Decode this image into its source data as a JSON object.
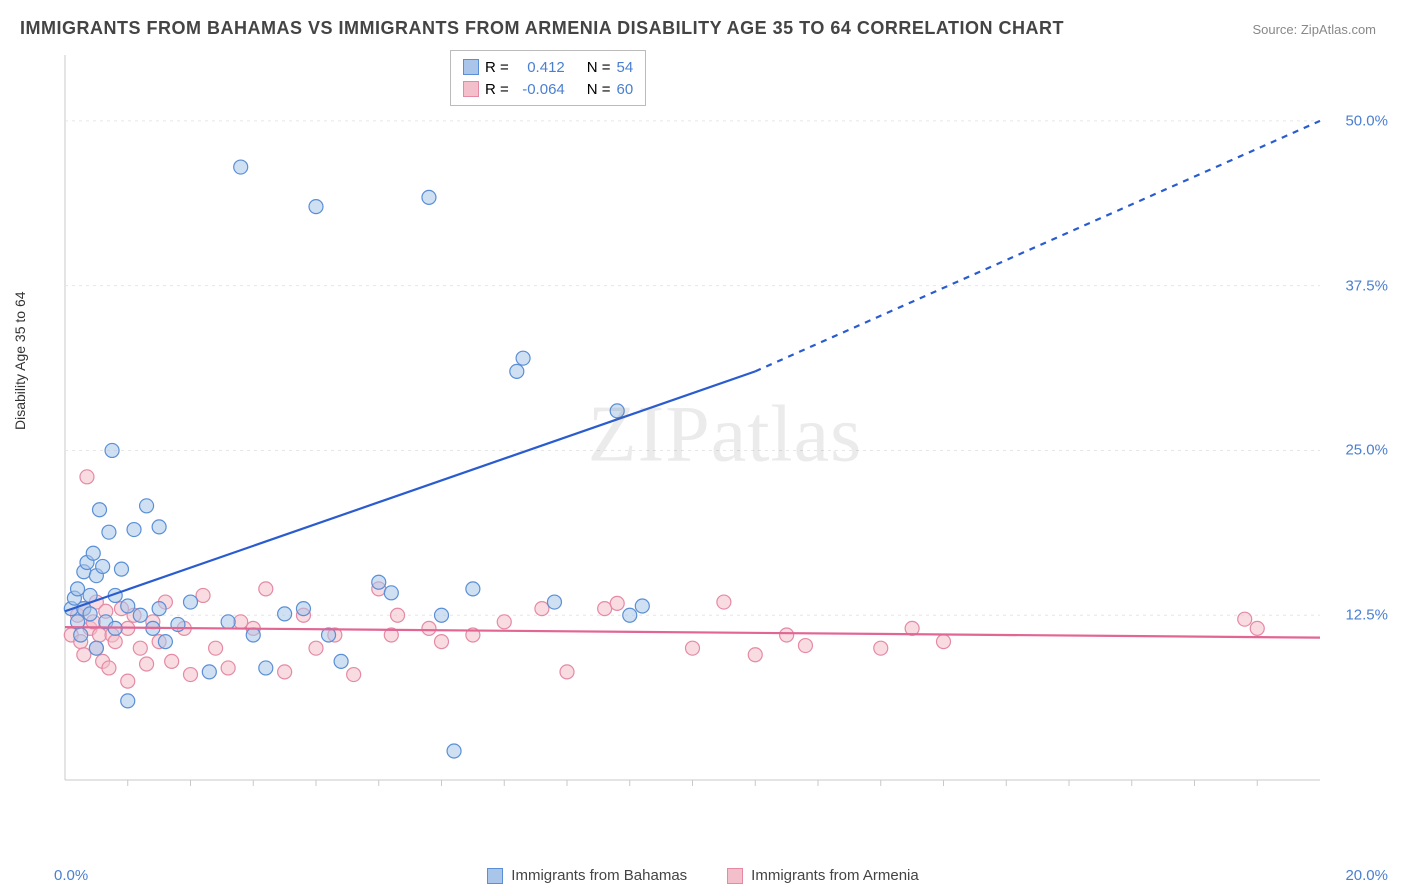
{
  "title": "IMMIGRANTS FROM BAHAMAS VS IMMIGRANTS FROM ARMENIA DISABILITY AGE 35 TO 64 CORRELATION CHART",
  "source": "Source: ZipAtlas.com",
  "ylabel": "Disability Age 35 to 64",
  "watermark_1": "ZIP",
  "watermark_2": "atlas",
  "chart": {
    "type": "scatter",
    "xlim": [
      0,
      20
    ],
    "ylim": [
      0,
      55
    ],
    "x_ticks_shown": [
      "0.0%",
      "20.0%"
    ],
    "y_ticks": [
      {
        "v": 12.5,
        "label": "12.5%"
      },
      {
        "v": 25.0,
        "label": "25.0%"
      },
      {
        "v": 37.5,
        "label": "37.5%"
      },
      {
        "v": 50.0,
        "label": "50.0%"
      }
    ],
    "x_minor_grid_step": 1.0,
    "y_major_grid": [
      12.5,
      25.0,
      37.5,
      50.0
    ],
    "background_color": "#ffffff",
    "grid_color": "#e6e6e6",
    "axis_color": "#c9c9c9",
    "marker_radius": 7,
    "marker_opacity": 0.55,
    "marker_stroke_width": 1.2,
    "trend_line_width": 2.2,
    "series": [
      {
        "name": "Immigrants from Bahamas",
        "key": "bahamas",
        "color_fill": "#a9c6ea",
        "color_stroke": "#5a8fd6",
        "trend_color": "#2a5ccf",
        "tick_color": "#4a7fd0",
        "R_label": "R =",
        "R": "0.412",
        "N_label": "N =",
        "N": "54",
        "trend": {
          "x1": 0.0,
          "y1": 12.8,
          "x2": 11.0,
          "y2": 31.0,
          "x2_dash": 20.0,
          "y2_dash": 50.0
        },
        "points": [
          [
            0.1,
            13.0
          ],
          [
            0.15,
            13.8
          ],
          [
            0.2,
            12.0
          ],
          [
            0.2,
            14.5
          ],
          [
            0.25,
            11.0
          ],
          [
            0.3,
            15.8
          ],
          [
            0.3,
            13.0
          ],
          [
            0.35,
            16.5
          ],
          [
            0.4,
            12.6
          ],
          [
            0.4,
            14.0
          ],
          [
            0.45,
            17.2
          ],
          [
            0.5,
            10.0
          ],
          [
            0.5,
            15.5
          ],
          [
            0.55,
            20.5
          ],
          [
            0.6,
            16.2
          ],
          [
            0.65,
            12.0
          ],
          [
            0.7,
            18.8
          ],
          [
            0.75,
            25.0
          ],
          [
            0.8,
            11.5
          ],
          [
            0.8,
            14.0
          ],
          [
            0.9,
            16.0
          ],
          [
            1.0,
            6.0
          ],
          [
            1.0,
            13.2
          ],
          [
            1.1,
            19.0
          ],
          [
            1.2,
            12.5
          ],
          [
            1.3,
            20.8
          ],
          [
            1.4,
            11.5
          ],
          [
            1.5,
            19.2
          ],
          [
            1.5,
            13.0
          ],
          [
            1.6,
            10.5
          ],
          [
            1.8,
            11.8
          ],
          [
            2.0,
            13.5
          ],
          [
            2.3,
            8.2
          ],
          [
            2.6,
            12.0
          ],
          [
            2.8,
            46.5
          ],
          [
            3.0,
            11.0
          ],
          [
            3.2,
            8.5
          ],
          [
            3.5,
            12.6
          ],
          [
            3.8,
            13.0
          ],
          [
            4.0,
            43.5
          ],
          [
            4.2,
            11.0
          ],
          [
            4.4,
            9.0
          ],
          [
            5.0,
            15.0
          ],
          [
            5.2,
            14.2
          ],
          [
            5.8,
            44.2
          ],
          [
            6.0,
            12.5
          ],
          [
            6.2,
            2.2
          ],
          [
            6.5,
            14.5
          ],
          [
            7.2,
            31.0
          ],
          [
            7.3,
            32.0
          ],
          [
            7.8,
            13.5
          ],
          [
            8.8,
            28.0
          ],
          [
            9.0,
            12.5
          ],
          [
            9.2,
            13.2
          ]
        ]
      },
      {
        "name": "Immigrants from Armenia",
        "key": "armenia",
        "color_fill": "#f3bfcb",
        "color_stroke": "#e58aa5",
        "trend_color": "#e16694",
        "tick_color": "#e58aa5",
        "R_label": "R =",
        "R": "-0.064",
        "N_label": "N =",
        "N": "60",
        "trend": {
          "x1": 0.0,
          "y1": 11.6,
          "x2": 20.0,
          "y2": 10.8,
          "x2_dash": 20.0,
          "y2_dash": 10.8
        },
        "points": [
          [
            0.1,
            11.0
          ],
          [
            0.2,
            12.5
          ],
          [
            0.25,
            10.5
          ],
          [
            0.3,
            13.0
          ],
          [
            0.3,
            9.5
          ],
          [
            0.35,
            23.0
          ],
          [
            0.4,
            11.5
          ],
          [
            0.45,
            12.0
          ],
          [
            0.5,
            10.0
          ],
          [
            0.5,
            13.5
          ],
          [
            0.55,
            11.0
          ],
          [
            0.6,
            9.0
          ],
          [
            0.65,
            12.8
          ],
          [
            0.7,
            8.5
          ],
          [
            0.75,
            11.0
          ],
          [
            0.8,
            10.5
          ],
          [
            0.9,
            13.0
          ],
          [
            1.0,
            11.5
          ],
          [
            1.0,
            7.5
          ],
          [
            1.1,
            12.5
          ],
          [
            1.2,
            10.0
          ],
          [
            1.3,
            8.8
          ],
          [
            1.4,
            12.0
          ],
          [
            1.5,
            10.5
          ],
          [
            1.6,
            13.5
          ],
          [
            1.7,
            9.0
          ],
          [
            1.9,
            11.5
          ],
          [
            2.0,
            8.0
          ],
          [
            2.2,
            14.0
          ],
          [
            2.4,
            10.0
          ],
          [
            2.6,
            8.5
          ],
          [
            2.8,
            12.0
          ],
          [
            3.0,
            11.5
          ],
          [
            3.2,
            14.5
          ],
          [
            3.5,
            8.2
          ],
          [
            3.8,
            12.5
          ],
          [
            4.0,
            10.0
          ],
          [
            4.3,
            11.0
          ],
          [
            4.6,
            8.0
          ],
          [
            5.0,
            14.5
          ],
          [
            5.2,
            11.0
          ],
          [
            5.3,
            12.5
          ],
          [
            5.8,
            11.5
          ],
          [
            6.0,
            10.5
          ],
          [
            6.5,
            11.0
          ],
          [
            7.0,
            12.0
          ],
          [
            7.6,
            13.0
          ],
          [
            8.0,
            8.2
          ],
          [
            8.6,
            13.0
          ],
          [
            8.8,
            13.4
          ],
          [
            10.0,
            10.0
          ],
          [
            10.5,
            13.5
          ],
          [
            11.0,
            9.5
          ],
          [
            11.5,
            11.0
          ],
          [
            11.8,
            10.2
          ],
          [
            13.0,
            10.0
          ],
          [
            13.5,
            11.5
          ],
          [
            14.0,
            10.5
          ],
          [
            18.8,
            12.2
          ],
          [
            19.0,
            11.5
          ]
        ]
      }
    ],
    "legend_bottom": [
      {
        "label": "Immigrants from Bahamas",
        "key": "bahamas"
      },
      {
        "label": "Immigrants from Armenia",
        "key": "armenia"
      }
    ]
  }
}
